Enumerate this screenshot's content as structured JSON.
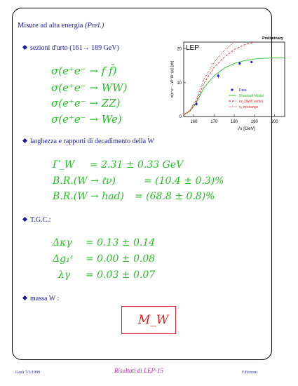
{
  "title": {
    "main": "Misure ad alta energia",
    "note": "(Prel.)"
  },
  "bullets": {
    "cross_sections": "sezioni d'urto (161→ 189 GeV)",
    "widths": "larghezza e rapporti di decadimento della W",
    "tgc": "T.G.C.:",
    "mass": "massa W :"
  },
  "cross_sections": [
    "σ(e⁺e⁻ → f f̄)",
    "σ(e⁺e⁻ → WW)",
    "σ(e⁺e⁻ → ZZ)",
    "σ(e⁺e⁻ → We)"
  ],
  "widths": [
    {
      "label": "Γ_W",
      "value": "= 2.31 ± 0.33 GeV"
    },
    {
      "label": "B.R.(W → ℓν)",
      "value": "= (10.4 ± 0.3)%"
    },
    {
      "label": "B.R.(W → had)",
      "value": "= (68.8 ± 0.8)%"
    }
  ],
  "tgc": [
    {
      "label": "Δκγ",
      "value": "= 0.13 ± 0.14"
    },
    {
      "label": "Δg₁ᶻ",
      "value": "= 0.00 ± 0.08"
    },
    {
      "label": "λγ",
      "value": "= 0.03 ± 0.07"
    }
  ],
  "mass_box": "M_W",
  "footer": {
    "left": "Gesù 7/3/1999",
    "center": "Risultati di LEP-15",
    "right": "F.Ferroni"
  },
  "chart_data": {
    "type": "scatter",
    "title": "Preliminary",
    "label_tag": "LEP",
    "xlabel": "√s  [GeV]",
    "ylabel": "σ(e⁺e⁻→W⁺W⁻(γ)) [pb]",
    "xlim": [
      155,
      205
    ],
    "ylim": [
      0,
      22
    ],
    "xticks": [
      160,
      170,
      180,
      190,
      200
    ],
    "yticks": [
      0,
      10,
      20
    ],
    "legend": [
      "Data",
      "Standard Model",
      "no ZWW vertex",
      "νₑ exchange"
    ],
    "legend_position": "bottom-right",
    "series": [
      {
        "name": "Data",
        "x": [
          161.3,
          172.1,
          182.7,
          188.6
        ],
        "y": [
          3.7,
          12.0,
          15.7,
          16.1
        ],
        "err": [
          0.5,
          0.7,
          0.4,
          0.3
        ]
      },
      {
        "name": "Standard Model",
        "x": [
          155,
          158,
          161,
          165,
          170,
          175,
          180,
          185,
          190,
          195,
          200,
          205
        ],
        "y": [
          0.5,
          1.5,
          3.8,
          8.5,
          12.0,
          14.3,
          15.7,
          16.5,
          17.0,
          17.2,
          17.3,
          17.3
        ]
      },
      {
        "name": "no ZWW vertex",
        "x": [
          155,
          158,
          161,
          165,
          170,
          175,
          180,
          185,
          190
        ],
        "y": [
          0.5,
          1.6,
          4.2,
          9.8,
          14.5,
          17.5,
          19.8,
          21.2,
          22.0
        ]
      },
      {
        "name": "νₑ exchange",
        "x": [
          155,
          158,
          161,
          165,
          170,
          175,
          180
        ],
        "y": [
          0.6,
          1.8,
          4.8,
          11.0,
          16.0,
          19.5,
          22.0
        ]
      }
    ],
    "colors": {
      "data": "#1a1aff",
      "sm": "#22c322",
      "nozww": "#e02020",
      "nue": "#e02020"
    }
  }
}
